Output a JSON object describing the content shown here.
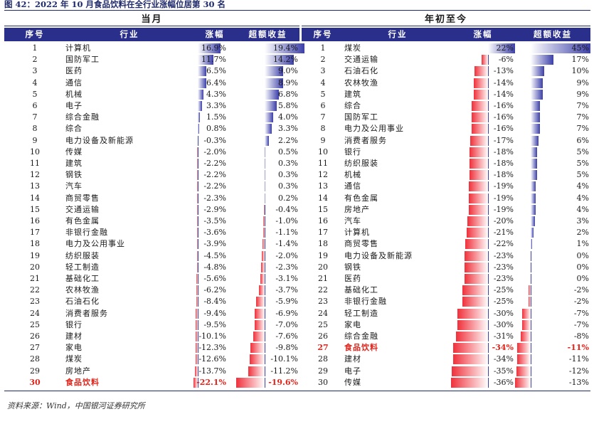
{
  "title": "图 42：2022 年 10 月食品饮料在全行业涨幅位居第 30 名",
  "groups": {
    "month": "当月",
    "ytd": "年初至今"
  },
  "headers": {
    "idx": "序号",
    "industry": "行业",
    "change": "涨幅",
    "excess": "超额收益"
  },
  "highlight_color": "#e0241b",
  "bar_colors": {
    "positive": "#3b3fa8",
    "negative": "#f0303a"
  },
  "month_rows": [
    {
      "idx": "1",
      "name": "计算机",
      "chg": "16.9%",
      "chg_v": 16.9,
      "exc": "19.4%",
      "exc_v": 19.4,
      "hl": false
    },
    {
      "idx": "2",
      "name": "国防军工",
      "chg": "11.7%",
      "chg_v": 11.7,
      "exc": "14.2%",
      "exc_v": 14.2,
      "hl": false
    },
    {
      "idx": "3",
      "name": "医药",
      "chg": "6.5%",
      "chg_v": 6.5,
      "exc": "9.0%",
      "exc_v": 9.0,
      "hl": false
    },
    {
      "idx": "4",
      "name": "通信",
      "chg": "6.4%",
      "chg_v": 6.4,
      "exc": "8.9%",
      "exc_v": 8.9,
      "hl": false
    },
    {
      "idx": "5",
      "name": "机械",
      "chg": "4.3%",
      "chg_v": 4.3,
      "exc": "6.8%",
      "exc_v": 6.8,
      "hl": false
    },
    {
      "idx": "6",
      "name": "电子",
      "chg": "3.3%",
      "chg_v": 3.3,
      "exc": "5.8%",
      "exc_v": 5.8,
      "hl": false
    },
    {
      "idx": "7",
      "name": "综合金融",
      "chg": "1.5%",
      "chg_v": 1.5,
      "exc": "4.0%",
      "exc_v": 4.0,
      "hl": false
    },
    {
      "idx": "8",
      "name": "综合",
      "chg": "0.8%",
      "chg_v": 0.8,
      "exc": "3.3%",
      "exc_v": 3.3,
      "hl": false
    },
    {
      "idx": "9",
      "name": "电力设备及新能源",
      "chg": "-0.3%",
      "chg_v": -0.3,
      "exc": "2.2%",
      "exc_v": 2.2,
      "hl": false
    },
    {
      "idx": "10",
      "name": "传媒",
      "chg": "-2.0%",
      "chg_v": -2.0,
      "exc": "0.5%",
      "exc_v": 0.5,
      "hl": false
    },
    {
      "idx": "11",
      "name": "建筑",
      "chg": "-2.2%",
      "chg_v": -2.2,
      "exc": "0.3%",
      "exc_v": 0.3,
      "hl": false
    },
    {
      "idx": "12",
      "name": "钢铁",
      "chg": "-2.2%",
      "chg_v": -2.2,
      "exc": "0.3%",
      "exc_v": 0.3,
      "hl": false
    },
    {
      "idx": "13",
      "name": "汽车",
      "chg": "-2.2%",
      "chg_v": -2.2,
      "exc": "0.3%",
      "exc_v": 0.3,
      "hl": false
    },
    {
      "idx": "14",
      "name": "商贸零售",
      "chg": "-2.3%",
      "chg_v": -2.3,
      "exc": "0.2%",
      "exc_v": 0.2,
      "hl": false
    },
    {
      "idx": "15",
      "name": "交通运输",
      "chg": "-2.9%",
      "chg_v": -2.9,
      "exc": "-0.4%",
      "exc_v": -0.4,
      "hl": false
    },
    {
      "idx": "16",
      "name": "有色金属",
      "chg": "-3.5%",
      "chg_v": -3.5,
      "exc": "-1.0%",
      "exc_v": -1.0,
      "hl": false
    },
    {
      "idx": "17",
      "name": "非银行金融",
      "chg": "-3.6%",
      "chg_v": -3.6,
      "exc": "-1.1%",
      "exc_v": -1.1,
      "hl": false
    },
    {
      "idx": "18",
      "name": "电力及公用事业",
      "chg": "-3.9%",
      "chg_v": -3.9,
      "exc": "-1.4%",
      "exc_v": -1.4,
      "hl": false
    },
    {
      "idx": "19",
      "name": "纺织服装",
      "chg": "-4.5%",
      "chg_v": -4.5,
      "exc": "-2.0%",
      "exc_v": -2.0,
      "hl": false
    },
    {
      "idx": "20",
      "name": "轻工制造",
      "chg": "-4.8%",
      "chg_v": -4.8,
      "exc": "-2.3%",
      "exc_v": -2.3,
      "hl": false
    },
    {
      "idx": "21",
      "name": "基础化工",
      "chg": "-5.6%",
      "chg_v": -5.6,
      "exc": "-3.1%",
      "exc_v": -3.1,
      "hl": false
    },
    {
      "idx": "22",
      "name": "农林牧渔",
      "chg": "-6.2%",
      "chg_v": -6.2,
      "exc": "-3.7%",
      "exc_v": -3.7,
      "hl": false
    },
    {
      "idx": "23",
      "name": "石油石化",
      "chg": "-8.4%",
      "chg_v": -8.4,
      "exc": "-5.9%",
      "exc_v": -5.9,
      "hl": false
    },
    {
      "idx": "24",
      "name": "消费者服务",
      "chg": "-9.4%",
      "chg_v": -9.4,
      "exc": "-6.9%",
      "exc_v": -6.9,
      "hl": false
    },
    {
      "idx": "25",
      "name": "银行",
      "chg": "-9.5%",
      "chg_v": -9.5,
      "exc": "-7.0%",
      "exc_v": -7.0,
      "hl": false
    },
    {
      "idx": "26",
      "name": "建材",
      "chg": "-10.1%",
      "chg_v": -10.1,
      "exc": "-7.6%",
      "exc_v": -7.6,
      "hl": false
    },
    {
      "idx": "27",
      "name": "家电",
      "chg": "-12.3%",
      "chg_v": -12.3,
      "exc": "-9.8%",
      "exc_v": -9.8,
      "hl": false
    },
    {
      "idx": "28",
      "name": "煤炭",
      "chg": "-12.6%",
      "chg_v": -12.6,
      "exc": "-10.1%",
      "exc_v": -10.1,
      "hl": false
    },
    {
      "idx": "29",
      "name": "房地产",
      "chg": "-13.7%",
      "chg_v": -13.7,
      "exc": "-11.2%",
      "exc_v": -11.2,
      "hl": false
    },
    {
      "idx": "30",
      "name": "食品饮料",
      "chg": "-22.1%",
      "chg_v": -22.1,
      "exc": "-19.6%",
      "exc_v": -19.6,
      "hl": true
    }
  ],
  "ytd_rows": [
    {
      "idx": "1",
      "name": "煤炭",
      "chg": "22%",
      "chg_v": 22,
      "exc": "45%",
      "exc_v": 45,
      "hl": false
    },
    {
      "idx": "2",
      "name": "交通运输",
      "chg": "-6%",
      "chg_v": -6,
      "exc": "17%",
      "exc_v": 17,
      "hl": false
    },
    {
      "idx": "3",
      "name": "石油石化",
      "chg": "-13%",
      "chg_v": -13,
      "exc": "10%",
      "exc_v": 10,
      "hl": false
    },
    {
      "idx": "4",
      "name": "农林牧渔",
      "chg": "-14%",
      "chg_v": -14,
      "exc": "9%",
      "exc_v": 9,
      "hl": false
    },
    {
      "idx": "5",
      "name": "建筑",
      "chg": "-14%",
      "chg_v": -14,
      "exc": "9%",
      "exc_v": 9,
      "hl": false
    },
    {
      "idx": "6",
      "name": "综合",
      "chg": "-16%",
      "chg_v": -16,
      "exc": "7%",
      "exc_v": 7,
      "hl": false
    },
    {
      "idx": "7",
      "name": "国防军工",
      "chg": "-16%",
      "chg_v": -16,
      "exc": "7%",
      "exc_v": 7,
      "hl": false
    },
    {
      "idx": "8",
      "name": "电力及公用事业",
      "chg": "-16%",
      "chg_v": -16,
      "exc": "7%",
      "exc_v": 7,
      "hl": false
    },
    {
      "idx": "9",
      "name": "消费者服务",
      "chg": "-17%",
      "chg_v": -17,
      "exc": "6%",
      "exc_v": 6,
      "hl": false
    },
    {
      "idx": "10",
      "name": "银行",
      "chg": "-18%",
      "chg_v": -18,
      "exc": "5%",
      "exc_v": 5,
      "hl": false
    },
    {
      "idx": "11",
      "name": "纺织服装",
      "chg": "-18%",
      "chg_v": -18,
      "exc": "5%",
      "exc_v": 5,
      "hl": false
    },
    {
      "idx": "12",
      "name": "机械",
      "chg": "-18%",
      "chg_v": -18,
      "exc": "5%",
      "exc_v": 5,
      "hl": false
    },
    {
      "idx": "13",
      "name": "通信",
      "chg": "-19%",
      "chg_v": -19,
      "exc": "4%",
      "exc_v": 4,
      "hl": false
    },
    {
      "idx": "14",
      "name": "有色金属",
      "chg": "-19%",
      "chg_v": -19,
      "exc": "4%",
      "exc_v": 4,
      "hl": false
    },
    {
      "idx": "15",
      "name": "房地产",
      "chg": "-19%",
      "chg_v": -19,
      "exc": "4%",
      "exc_v": 4,
      "hl": false
    },
    {
      "idx": "16",
      "name": "汽车",
      "chg": "-20%",
      "chg_v": -20,
      "exc": "3%",
      "exc_v": 3,
      "hl": false
    },
    {
      "idx": "17",
      "name": "计算机",
      "chg": "-21%",
      "chg_v": -21,
      "exc": "2%",
      "exc_v": 2,
      "hl": false
    },
    {
      "idx": "18",
      "name": "商贸零售",
      "chg": "-22%",
      "chg_v": -22,
      "exc": "1%",
      "exc_v": 1,
      "hl": false
    },
    {
      "idx": "19",
      "name": "电力设备及新能源",
      "chg": "-23%",
      "chg_v": -23,
      "exc": "0%",
      "exc_v": 0,
      "hl": false
    },
    {
      "idx": "20",
      "name": "钢铁",
      "chg": "-23%",
      "chg_v": -23,
      "exc": "0%",
      "exc_v": 0,
      "hl": false
    },
    {
      "idx": "21",
      "name": "医药",
      "chg": "-23%",
      "chg_v": -23,
      "exc": "0%",
      "exc_v": 0,
      "hl": false
    },
    {
      "idx": "22",
      "name": "基础化工",
      "chg": "-25%",
      "chg_v": -25,
      "exc": "-2%",
      "exc_v": -2,
      "hl": false
    },
    {
      "idx": "23",
      "name": "非银行金融",
      "chg": "-25%",
      "chg_v": -25,
      "exc": "-2%",
      "exc_v": -2,
      "hl": false
    },
    {
      "idx": "24",
      "name": "轻工制造",
      "chg": "-30%",
      "chg_v": -30,
      "exc": "-7%",
      "exc_v": -7,
      "hl": false
    },
    {
      "idx": "25",
      "name": "家电",
      "chg": "-30%",
      "chg_v": -30,
      "exc": "-7%",
      "exc_v": -7,
      "hl": false
    },
    {
      "idx": "26",
      "name": "综合金融",
      "chg": "-31%",
      "chg_v": -31,
      "exc": "-8%",
      "exc_v": -8,
      "hl": false
    },
    {
      "idx": "27",
      "name": "食品饮料",
      "chg": "-34%",
      "chg_v": -34,
      "exc": "-11%",
      "exc_v": -11,
      "hl": true
    },
    {
      "idx": "28",
      "name": "建材",
      "chg": "-34%",
      "chg_v": -34,
      "exc": "-11%",
      "exc_v": -11,
      "hl": false
    },
    {
      "idx": "29",
      "name": "电子",
      "chg": "-35%",
      "chg_v": -35,
      "exc": "-12%",
      "exc_v": -12,
      "hl": false
    },
    {
      "idx": "30",
      "name": "传媒",
      "chg": "-36%",
      "chg_v": -36,
      "exc": "-13%",
      "exc_v": -13,
      "hl": false
    }
  ],
  "source": "资料来源：Wind，中国银河证券研究所"
}
